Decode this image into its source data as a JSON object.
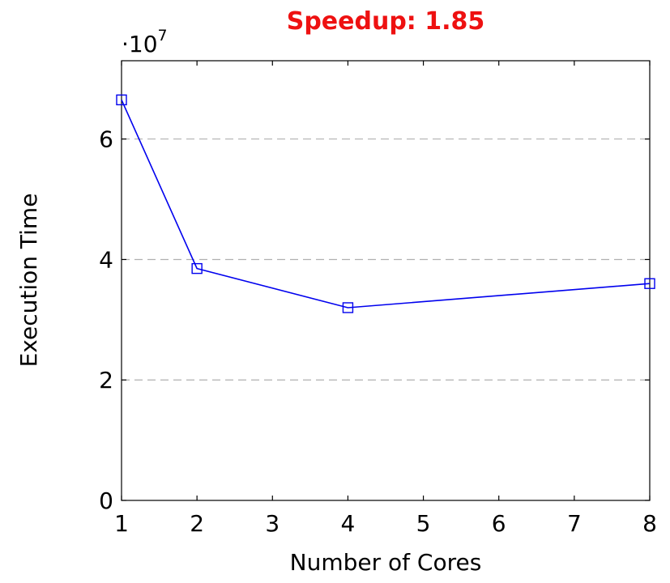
{
  "chart_data": {
    "type": "line",
    "title": "Speedup: 1.85",
    "title_color": "#ee1111",
    "xlabel": "Number of Cores",
    "ylabel": "Execution Time",
    "y_multiplier": {
      "base": "·10",
      "exponent": "7"
    },
    "x": [
      1,
      2,
      4,
      8
    ],
    "x_tick_labels": [
      "1",
      "2",
      "3",
      "4",
      "5",
      "6",
      "7",
      "8"
    ],
    "y_ticks": [
      0,
      2,
      4,
      6
    ],
    "y_tick_labels": [
      "0",
      "2",
      "4",
      "6"
    ],
    "ylim": [
      0,
      7.3
    ],
    "xlim": [
      1,
      8
    ],
    "grid": "horizontal dashed",
    "series": [
      {
        "color": "#0000ee",
        "marker": "square",
        "values": [
          6.65,
          3.85,
          3.2,
          3.6
        ]
      }
    ]
  }
}
